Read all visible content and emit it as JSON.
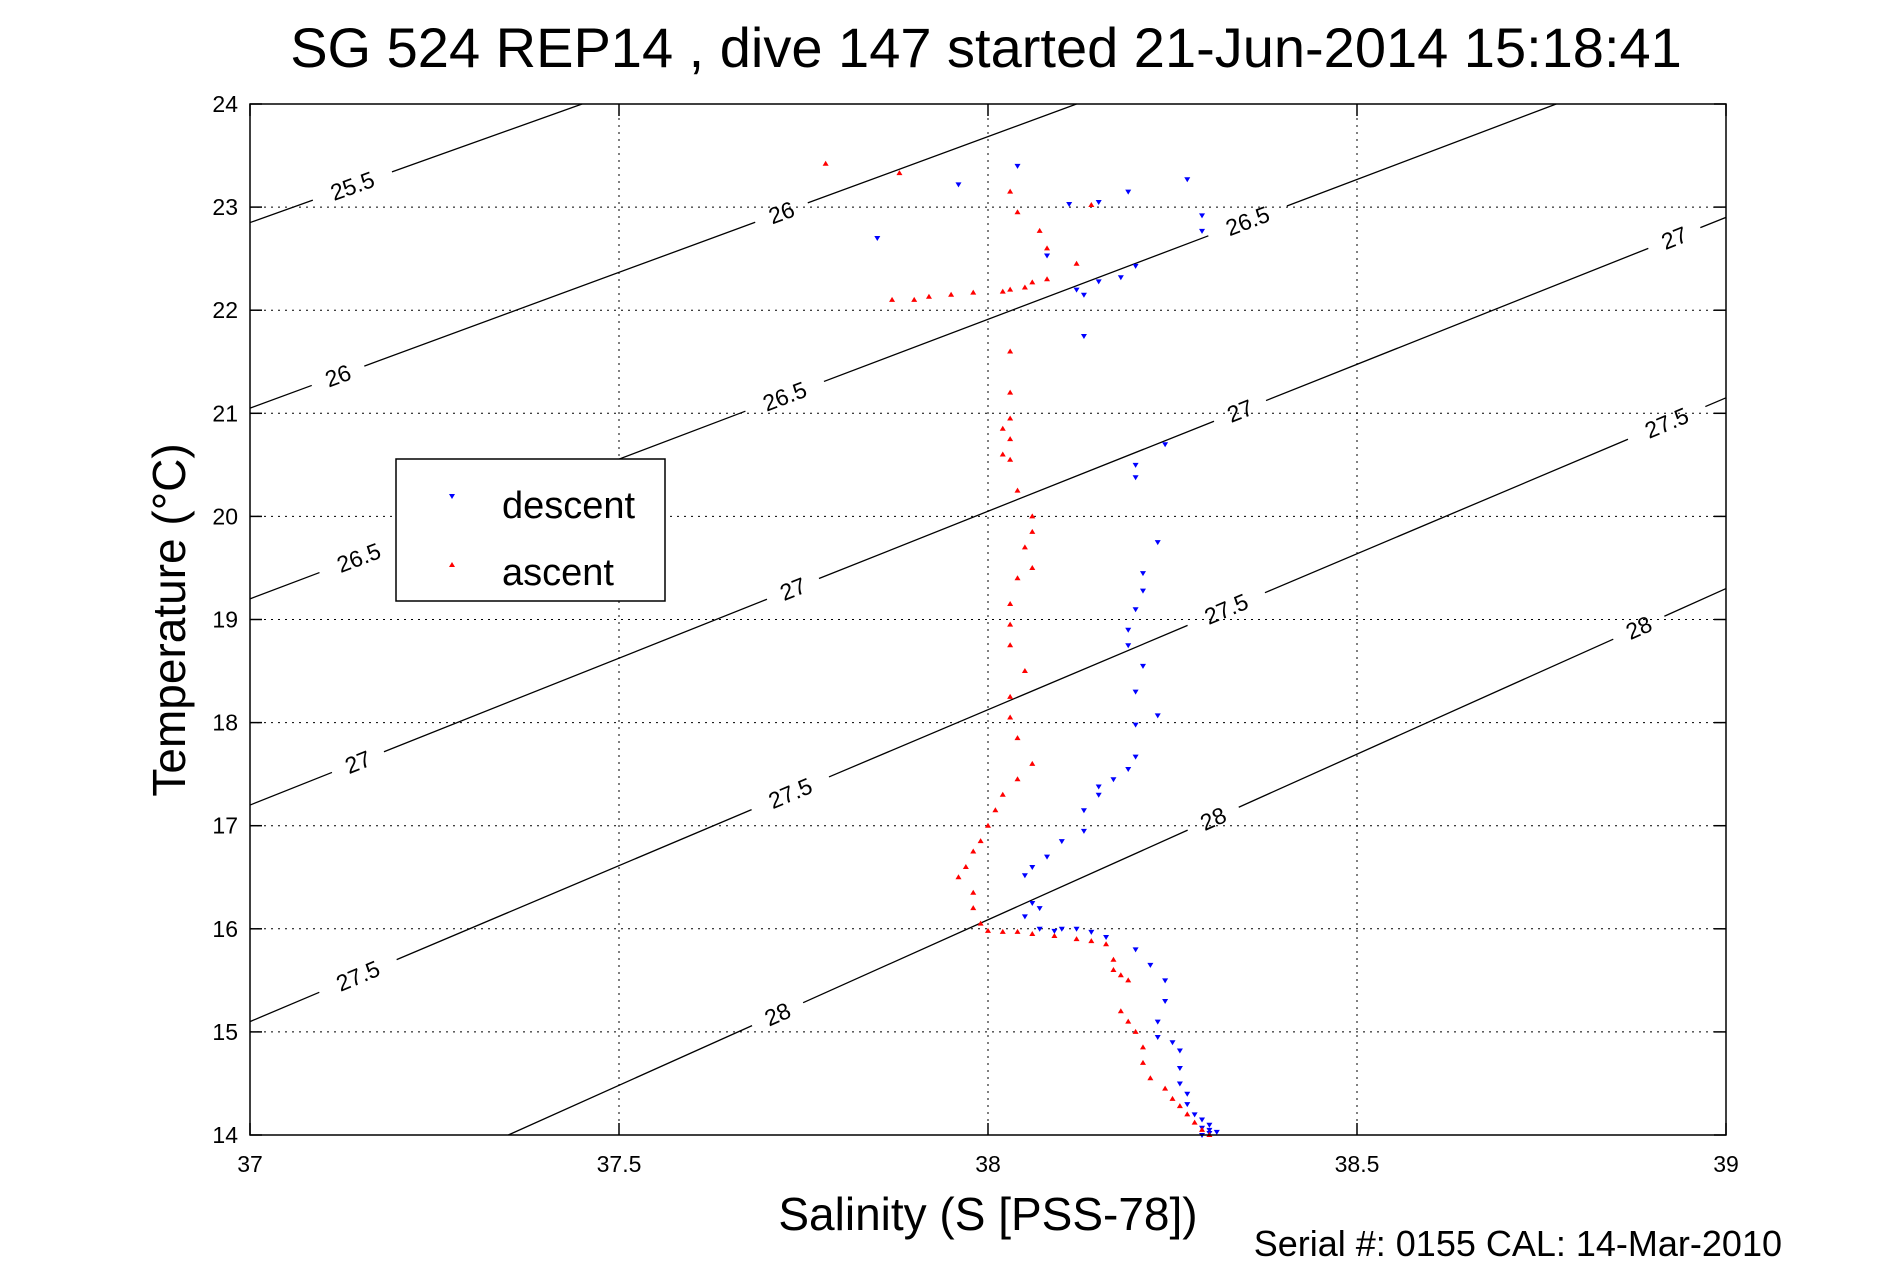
{
  "chart_data": {
    "type": "scatter",
    "title": "SG 524   REP14  , dive 147 started 21-Jun-2014 15:18:41",
    "xlabel": "Salinity (S [PSS-78])",
    "ylabel": "Temperature (°C)",
    "footer": "Serial #: 0155  CAL: 14-Mar-2010",
    "xlim": [
      37,
      39
    ],
    "ylim": [
      14,
      24
    ],
    "xticks": [
      "37",
      "37.5",
      "38",
      "38.5",
      "39"
    ],
    "yticks": [
      "14",
      "15",
      "16",
      "17",
      "18",
      "19",
      "20",
      "21",
      "22",
      "23",
      "24"
    ],
    "grid": true,
    "legend_placement": "middle-left",
    "series": [
      {
        "name": "descent",
        "color": "#0000ff",
        "marker": "triangle-down",
        "points": [
          [
            37.85,
            22.7
          ],
          [
            37.96,
            23.22
          ],
          [
            38.04,
            23.4
          ],
          [
            38.11,
            23.03
          ],
          [
            38.15,
            23.05
          ],
          [
            38.19,
            23.15
          ],
          [
            38.27,
            23.27
          ],
          [
            38.29,
            22.92
          ],
          [
            38.29,
            22.77
          ],
          [
            38.08,
            22.53
          ],
          [
            38.12,
            22.2
          ],
          [
            38.13,
            22.15
          ],
          [
            38.15,
            22.28
          ],
          [
            38.18,
            22.32
          ],
          [
            38.2,
            22.43
          ],
          [
            38.13,
            21.75
          ],
          [
            38.2,
            20.5
          ],
          [
            38.24,
            20.7
          ],
          [
            38.2,
            20.38
          ],
          [
            38.23,
            19.75
          ],
          [
            38.21,
            19.45
          ],
          [
            38.21,
            19.28
          ],
          [
            38.2,
            19.1
          ],
          [
            38.19,
            18.9
          ],
          [
            38.19,
            18.75
          ],
          [
            38.21,
            18.55
          ],
          [
            38.2,
            18.3
          ],
          [
            38.23,
            18.07
          ],
          [
            38.2,
            17.98
          ],
          [
            38.2,
            17.67
          ],
          [
            38.19,
            17.55
          ],
          [
            38.17,
            17.45
          ],
          [
            38.15,
            17.38
          ],
          [
            38.15,
            17.3
          ],
          [
            38.13,
            17.15
          ],
          [
            38.13,
            16.95
          ],
          [
            38.1,
            16.85
          ],
          [
            38.08,
            16.7
          ],
          [
            38.06,
            16.6
          ],
          [
            38.05,
            16.52
          ],
          [
            38.06,
            16.25
          ],
          [
            38.07,
            16.2
          ],
          [
            38.05,
            16.12
          ],
          [
            38.07,
            16.0
          ],
          [
            38.09,
            15.98
          ],
          [
            38.1,
            16.0
          ],
          [
            38.12,
            16.0
          ],
          [
            38.14,
            15.97
          ],
          [
            38.16,
            15.92
          ],
          [
            38.2,
            15.8
          ],
          [
            38.22,
            15.65
          ],
          [
            38.24,
            15.5
          ],
          [
            38.24,
            15.3
          ],
          [
            38.23,
            15.1
          ],
          [
            38.23,
            14.95
          ],
          [
            38.25,
            14.9
          ],
          [
            38.26,
            14.82
          ],
          [
            38.26,
            14.65
          ],
          [
            38.26,
            14.5
          ],
          [
            38.27,
            14.4
          ],
          [
            38.27,
            14.3
          ],
          [
            38.28,
            14.2
          ],
          [
            38.29,
            14.15
          ],
          [
            38.3,
            14.1
          ],
          [
            38.29,
            14.07
          ],
          [
            38.3,
            14.05
          ],
          [
            38.31,
            14.03
          ],
          [
            38.3,
            14.02
          ],
          [
            38.29,
            14.0
          ]
        ]
      },
      {
        "name": "ascent",
        "color": "#ff0000",
        "marker": "triangle-up",
        "points": [
          [
            37.78,
            23.42
          ],
          [
            37.88,
            23.33
          ],
          [
            38.03,
            23.15
          ],
          [
            38.04,
            22.95
          ],
          [
            38.07,
            22.77
          ],
          [
            38.08,
            22.6
          ],
          [
            38.12,
            22.45
          ],
          [
            38.14,
            23.02
          ],
          [
            38.08,
            22.3
          ],
          [
            38.06,
            22.27
          ],
          [
            38.05,
            22.22
          ],
          [
            38.03,
            22.2
          ],
          [
            38.02,
            22.18
          ],
          [
            37.98,
            22.17
          ],
          [
            37.95,
            22.15
          ],
          [
            37.92,
            22.13
          ],
          [
            37.9,
            22.1
          ],
          [
            37.87,
            22.1
          ],
          [
            38.03,
            21.6
          ],
          [
            38.03,
            21.2
          ],
          [
            38.03,
            20.95
          ],
          [
            38.02,
            20.85
          ],
          [
            38.03,
            20.75
          ],
          [
            38.02,
            20.6
          ],
          [
            38.03,
            20.55
          ],
          [
            38.04,
            20.25
          ],
          [
            38.06,
            20.0
          ],
          [
            38.06,
            19.85
          ],
          [
            38.05,
            19.7
          ],
          [
            38.06,
            19.5
          ],
          [
            38.04,
            19.4
          ],
          [
            38.03,
            19.15
          ],
          [
            38.03,
            18.95
          ],
          [
            38.03,
            18.75
          ],
          [
            38.05,
            18.5
          ],
          [
            38.03,
            18.25
          ],
          [
            38.03,
            18.05
          ],
          [
            38.04,
            17.85
          ],
          [
            38.06,
            17.6
          ],
          [
            38.04,
            17.45
          ],
          [
            38.02,
            17.3
          ],
          [
            38.01,
            17.15
          ],
          [
            38.0,
            17.0
          ],
          [
            37.99,
            16.85
          ],
          [
            37.98,
            16.75
          ],
          [
            37.97,
            16.6
          ],
          [
            37.96,
            16.5
          ],
          [
            37.98,
            16.35
          ],
          [
            37.98,
            16.2
          ],
          [
            37.99,
            16.05
          ],
          [
            38.0,
            15.98
          ],
          [
            38.02,
            15.97
          ],
          [
            38.04,
            15.97
          ],
          [
            38.06,
            15.95
          ],
          [
            38.09,
            15.93
          ],
          [
            38.12,
            15.9
          ],
          [
            38.14,
            15.88
          ],
          [
            38.16,
            15.85
          ],
          [
            38.17,
            15.7
          ],
          [
            38.17,
            15.6
          ],
          [
            38.18,
            15.55
          ],
          [
            38.19,
            15.5
          ],
          [
            38.18,
            15.2
          ],
          [
            38.19,
            15.1
          ],
          [
            38.2,
            15.0
          ],
          [
            38.21,
            14.85
          ],
          [
            38.21,
            14.7
          ],
          [
            38.22,
            14.55
          ],
          [
            38.24,
            14.45
          ],
          [
            38.25,
            14.35
          ],
          [
            38.26,
            14.28
          ],
          [
            38.27,
            14.2
          ],
          [
            38.28,
            14.12
          ],
          [
            38.29,
            14.05
          ],
          [
            38.3,
            14.0
          ]
        ]
      }
    ],
    "isopycnals": [
      {
        "label": "25.5",
        "line": [
          [
            37.0,
            22.85
          ],
          [
            37.45,
            24.0
          ]
        ],
        "labels_at": [
          [
            37.14,
            23.18
          ]
        ]
      },
      {
        "label": "26",
        "line": [
          [
            37.0,
            21.05
          ],
          [
            38.12,
            24.0
          ]
        ],
        "labels_at": [
          [
            37.12,
            21.35
          ],
          [
            37.72,
            22.95
          ]
        ]
      },
      {
        "label": "26.5",
        "line": [
          [
            37.0,
            19.2
          ],
          [
            38.77,
            24.0
          ]
        ],
        "labels_at": [
          [
            37.15,
            19.55
          ],
          [
            37.72,
            21.25
          ],
          [
            38.35,
            22.9
          ]
        ]
      },
      {
        "label": "27",
        "line": [
          [
            37.0,
            17.2
          ],
          [
            39.0,
            22.9
          ]
        ],
        "labels_at": [
          [
            37.15,
            17.55
          ],
          [
            37.73,
            19.4
          ],
          [
            38.34,
            21.05
          ],
          [
            38.93,
            22.7
          ]
        ]
      },
      {
        "label": "27.5",
        "line": [
          [
            37.0,
            15.1
          ],
          [
            39.0,
            21.15
          ]
        ],
        "labels_at": [
          [
            37.15,
            15.48
          ],
          [
            37.73,
            17.35
          ],
          [
            38.32,
            19.15
          ],
          [
            38.92,
            20.9
          ]
        ]
      },
      {
        "label": "28",
        "line": [
          [
            37.35,
            14.0
          ],
          [
            39.0,
            19.3
          ]
        ],
        "labels_at": [
          [
            37.71,
            15.25
          ],
          [
            38.3,
            17.15
          ],
          [
            38.88,
            18.95
          ]
        ]
      }
    ]
  }
}
